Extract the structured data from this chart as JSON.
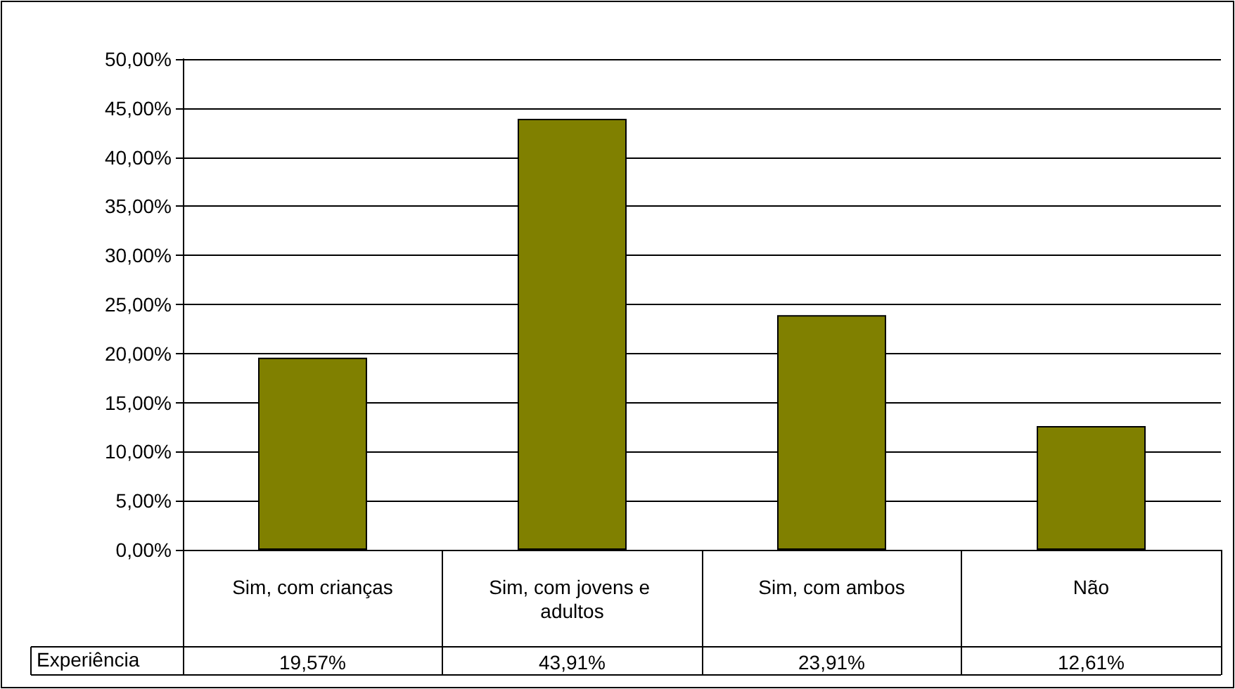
{
  "chart_data": {
    "type": "bar",
    "categories": [
      "Sim, com crianças",
      "Sim, com jovens e adultos",
      "Sim, com ambos",
      "Não"
    ],
    "series": [
      {
        "name": "Experiência",
        "color": "#808000",
        "values": [
          19.57,
          43.91,
          23.91,
          12.61
        ],
        "value_labels": [
          "19,57%",
          "43,91%",
          "23,91%",
          "12,61%"
        ]
      }
    ],
    "ylim": [
      0,
      50
    ],
    "yticks": [
      {
        "value": 0,
        "label": "0,00%"
      },
      {
        "value": 5,
        "label": "5,00%"
      },
      {
        "value": 10,
        "label": "10,00%"
      },
      {
        "value": 15,
        "label": "15,00%"
      },
      {
        "value": 20,
        "label": "20,00%"
      },
      {
        "value": 25,
        "label": "25,00%"
      },
      {
        "value": 30,
        "label": "30,00%"
      },
      {
        "value": 35,
        "label": "35,00%"
      },
      {
        "value": 40,
        "label": "40,00%"
      },
      {
        "value": 45,
        "label": "45,00%"
      },
      {
        "value": 50,
        "label": "50,00%"
      }
    ],
    "grid": "y",
    "legend": "bottom left"
  }
}
